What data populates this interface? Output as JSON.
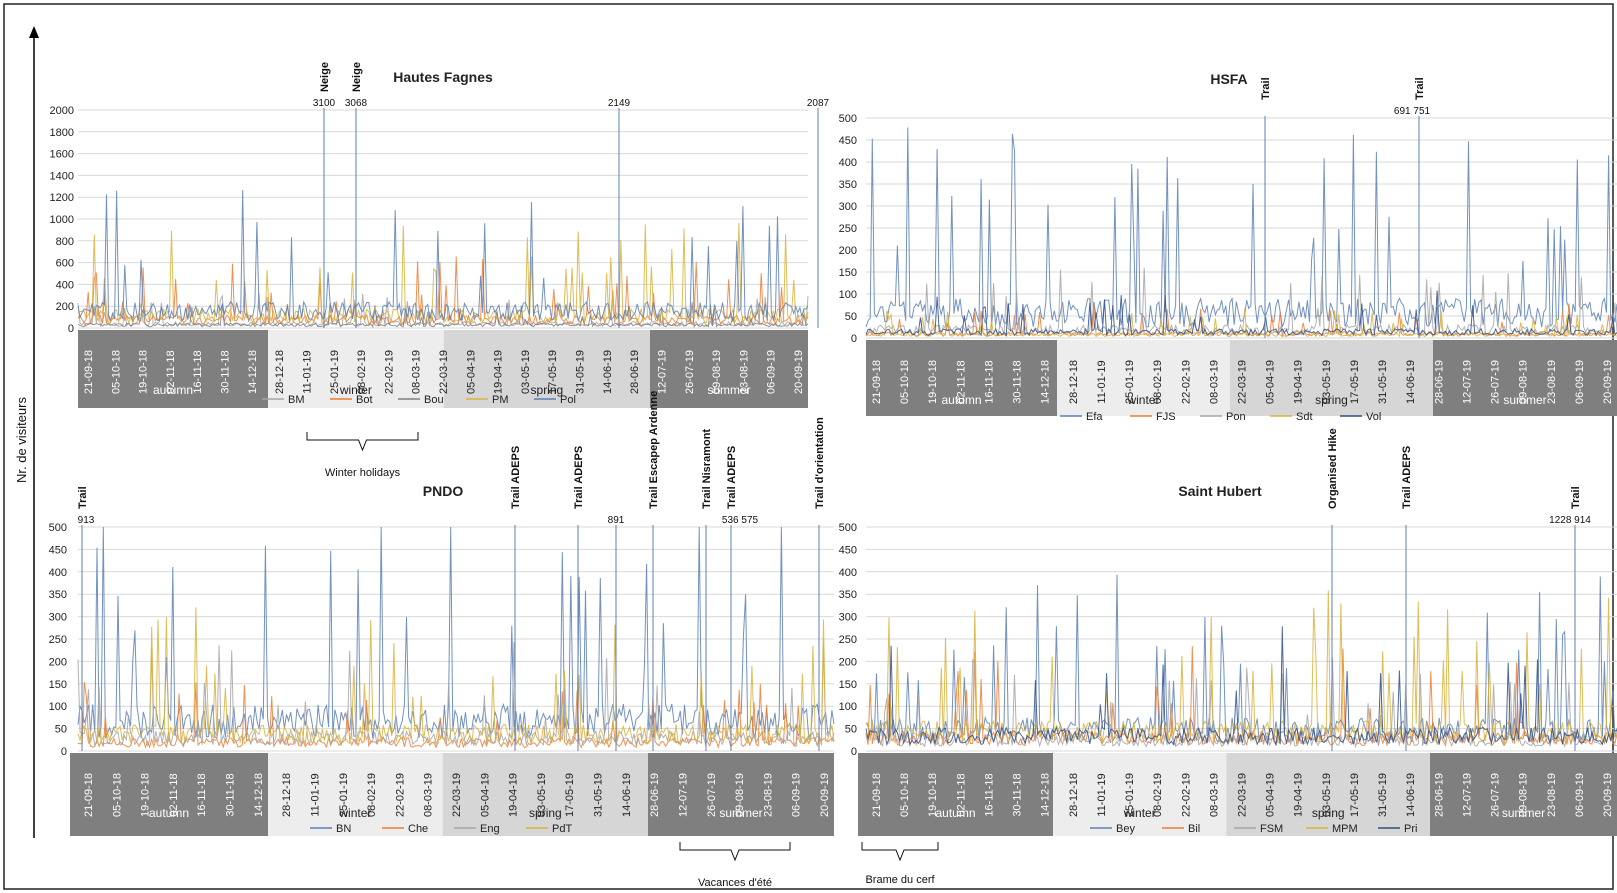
{
  "figure": {
    "y_axis_label": "Nr. de visiteurs",
    "colors": {
      "autumn_band": "#7f7f7f",
      "winter_band": "#ededed",
      "spring_band": "#d6d6d6",
      "summer_band": "#7f7f7f",
      "grid": "#d9d9d9"
    }
  },
  "chart_data": [
    {
      "id": "hautes-fagnes",
      "type": "line",
      "title": "Hautes Fagnes",
      "ylim": [
        0,
        2000
      ],
      "yticks": [
        "0",
        "200",
        "400",
        "600",
        "800",
        "1000",
        "1200",
        "1400",
        "1600",
        "1800",
        "2000"
      ],
      "date_labels": [
        "21-09-18",
        "05-10-18",
        "19-10-18",
        "02-11-18",
        "16-11-18",
        "30-11-18",
        "14-12-18",
        "28-12-18",
        "11-01-19",
        "25-01-19",
        "08-02-19",
        "22-02-19",
        "08-03-19",
        "22-03-19",
        "05-04-19",
        "19-04-19",
        "03-05-19",
        "17-05-19",
        "31-05-19",
        "14-06-19",
        "28-06-19",
        "12-07-19",
        "26-07-19",
        "09-08-19",
        "23-08-19",
        "06-09-19",
        "20-09-19"
      ],
      "seasons": [
        "autumn",
        "winter",
        "spring",
        "summer"
      ],
      "legend": [
        "BM",
        "Bot",
        "Bou",
        "PM",
        "Pol"
      ],
      "series_colors": [
        "#a5a5a5",
        "#ed7d31",
        "#7f7f7f",
        "#d9b23b",
        "#5b7fb5"
      ],
      "peak_labels": [
        {
          "value": "3100",
          "annotation": "Neige"
        },
        {
          "value": "3068",
          "annotation": "Neige"
        },
        {
          "value": "2149",
          "annotation": ""
        },
        {
          "value": "2087",
          "annotation": ""
        }
      ]
    },
    {
      "id": "hsfa",
      "type": "line",
      "title": "HSFA",
      "ylim": [
        0,
        500
      ],
      "yticks": [
        "0",
        "50",
        "100",
        "150",
        "200",
        "250",
        "300",
        "350",
        "400",
        "450",
        "500"
      ],
      "date_labels": [
        "21-09-18",
        "05-10-18",
        "19-10-18",
        "02-11-18",
        "16-11-18",
        "30-11-18",
        "14-12-18",
        "28-12-18",
        "11-01-19",
        "25-01-19",
        "08-02-19",
        "22-02-19",
        "08-03-19",
        "22-03-19",
        "05-04-19",
        "19-04-19",
        "03-05-19",
        "17-05-19",
        "31-05-19",
        "14-06-19",
        "28-06-19",
        "12-07-19",
        "26-07-19",
        "09-08-19",
        "23-08-19",
        "06-09-19",
        "20-09-19"
      ],
      "seasons": [
        "autumn",
        "winter",
        "spring",
        "summer"
      ],
      "legend": [
        "Efa",
        "FJS",
        "Pon",
        "Sdt",
        "Vol"
      ],
      "series_colors": [
        "#5b7fb5",
        "#ed7d31",
        "#a5a5a5",
        "#d9b23b",
        "#2f4f8a"
      ],
      "peak_labels": [
        {
          "value": "",
          "annotation": "Trail"
        },
        {
          "value": "691  751",
          "annotation": "Trail"
        }
      ]
    },
    {
      "id": "pndo",
      "type": "line",
      "title": "PNDO",
      "ylim": [
        0,
        500
      ],
      "yticks": [
        "0",
        "50",
        "100",
        "150",
        "200",
        "250",
        "300",
        "350",
        "400",
        "450",
        "500"
      ],
      "date_labels": [
        "21-09-18",
        "05-10-18",
        "19-10-18",
        "02-11-18",
        "16-11-18",
        "30-11-18",
        "14-12-18",
        "28-12-18",
        "11-01-19",
        "25-01-19",
        "08-02-19",
        "22-02-19",
        "08-03-19",
        "22-03-19",
        "05-04-19",
        "19-04-19",
        "03-05-19",
        "17-05-19",
        "31-05-19",
        "14-06-19",
        "28-06-19",
        "12-07-19",
        "26-07-19",
        "09-08-19",
        "23-08-19",
        "06-09-19",
        "20-09-19"
      ],
      "seasons": [
        "autumn",
        "winter",
        "spring",
        "summer"
      ],
      "legend": [
        "BN",
        "Che",
        "Eng",
        "PdT"
      ],
      "series_colors": [
        "#5b7fb5",
        "#ed7d31",
        "#a5a5a5",
        "#d9b23b"
      ],
      "peak_labels": [
        {
          "value": "913",
          "annotation": "Trail"
        },
        {
          "value": "",
          "annotation": "Trail ADEPS"
        },
        {
          "value": "",
          "annotation": "Trail ADEPS"
        },
        {
          "value": "891",
          "annotation": ""
        },
        {
          "value": "",
          "annotation": "Trail Escapep Ardenne"
        },
        {
          "value": "",
          "annotation": "Trail Nisramont"
        },
        {
          "value": "536  575",
          "annotation": "Trail ADEPS"
        },
        {
          "value": "",
          "annotation": "Trail d'orientation"
        }
      ]
    },
    {
      "id": "saint-hubert",
      "type": "line",
      "title": "Saint Hubert",
      "ylim": [
        0,
        500
      ],
      "yticks": [
        "0",
        "50",
        "100",
        "150",
        "200",
        "250",
        "300",
        "350",
        "400",
        "450",
        "500"
      ],
      "date_labels": [
        "21-09-18",
        "05-10-18",
        "19-10-18",
        "02-11-18",
        "16-11-18",
        "30-11-18",
        "14-12-18",
        "28-12-18",
        "11-01-19",
        "25-01-19",
        "08-02-19",
        "22-02-19",
        "08-03-19",
        "22-03-19",
        "05-04-19",
        "19-04-19",
        "03-05-19",
        "17-05-19",
        "31-05-19",
        "14-06-19",
        "28-06-19",
        "12-07-19",
        "26-07-19",
        "09-08-19",
        "23-08-19",
        "06-09-19",
        "20-09-19"
      ],
      "seasons": [
        "autumn",
        "winter",
        "spring",
        "summer"
      ],
      "legend": [
        "Bey",
        "Bil",
        "FSM",
        "MPM",
        "Pri"
      ],
      "series_colors": [
        "#5b7fb5",
        "#ed7d31",
        "#a5a5a5",
        "#d9b23b",
        "#2f4f8a"
      ],
      "peak_labels": [
        {
          "value": "",
          "annotation": "Organised Hike"
        },
        {
          "value": "",
          "annotation": "Trail ADEPS"
        },
        {
          "value": "1228 914",
          "annotation": "Trail"
        }
      ]
    }
  ],
  "braces": [
    {
      "label": "Winter holidays"
    },
    {
      "label": "Vacances d'été"
    },
    {
      "label": "Brame du cerf"
    }
  ]
}
